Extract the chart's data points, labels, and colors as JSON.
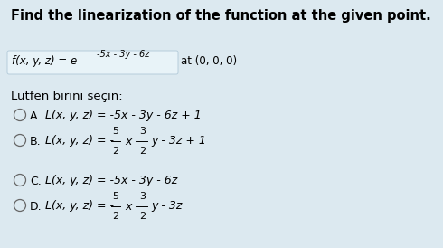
{
  "background_color": "#dce9f0",
  "title": "Find the linearization of the function at the given point.",
  "subtitle": "Lütfen birini seçin:",
  "options": [
    {
      "label": "A.",
      "text": "L(x, y, z) = -5x - 3y - 6z + 1",
      "has_fractions": false
    },
    {
      "label": "B.",
      "text_pre": "L(x, y, z) = -",
      "frac1_num": "5",
      "frac1_den": "2",
      "text_mid": "x -",
      "frac2_num": "3",
      "frac2_den": "2",
      "text_post": "y - 3z + 1",
      "has_fractions": true
    },
    {
      "label": "C.",
      "text": "L(x, y, z) = -5x - 3y - 6z",
      "has_fractions": false
    },
    {
      "label": "D.",
      "text_pre": "L(x, y, z) = -",
      "frac1_num": "5",
      "frac1_den": "2",
      "text_mid": "x -",
      "frac2_num": "3",
      "frac2_den": "2",
      "text_post": "y - 3z",
      "has_fractions": true
    }
  ]
}
